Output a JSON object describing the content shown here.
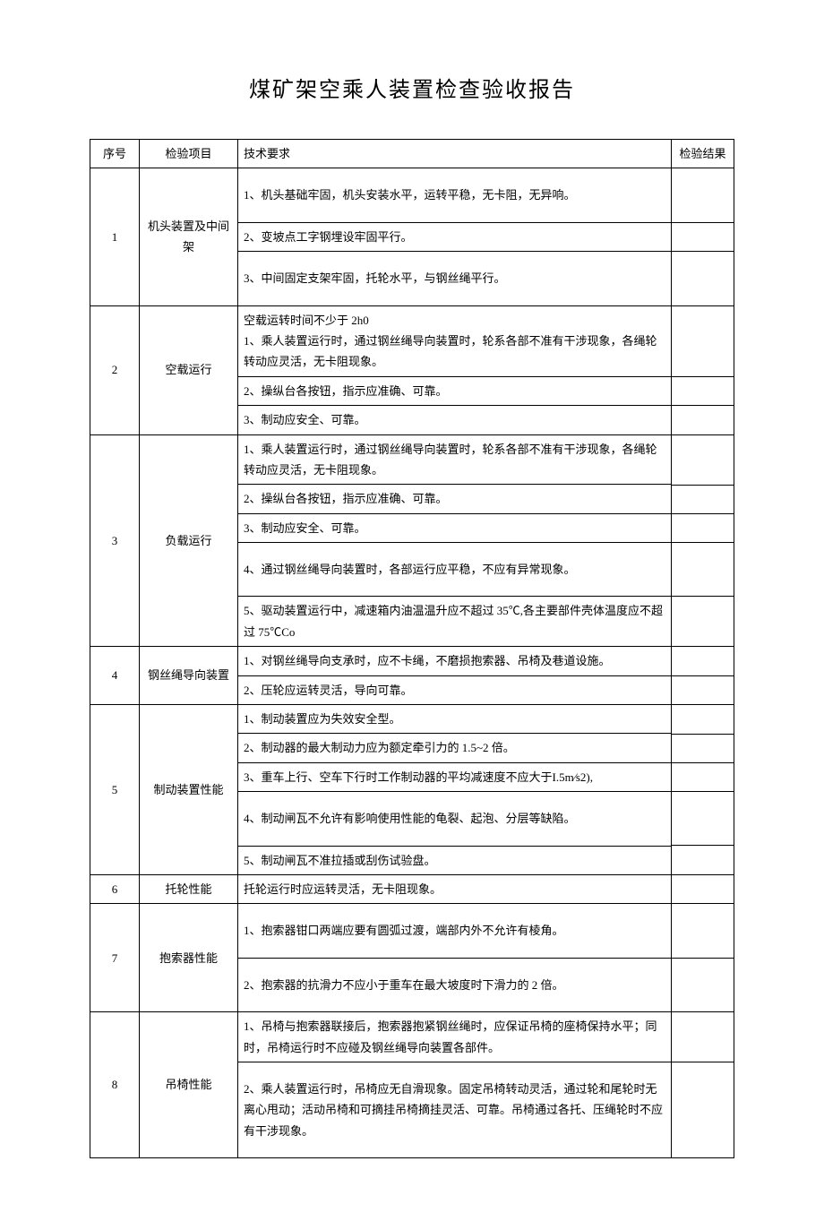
{
  "title": "煤矿架空乘人装置检查验收报告",
  "headers": {
    "seq": "序号",
    "item": "检验项目",
    "req": "技术要求",
    "result": "检验结果"
  },
  "rows": [
    {
      "seq": "1",
      "item": "机头装置及中间架",
      "reqs": [
        "1、机头基础牢固，机头安装水平，运转平稳，无卡阻，无异响。",
        "2、变坡点工字钢埋设牢固平行。",
        "3、中间固定支架牢固，托轮水平，与钢丝绳平行。"
      ],
      "tall": [
        true,
        false,
        true
      ]
    },
    {
      "seq": "2",
      "item": "空载运行",
      "reqs": [
        "空载运转时间不少于 2h0\n1、乘人装置运行时，通过钢丝绳导向装置时，轮系各部不准有干涉现象，各绳轮转动应灵活，无卡阻现象。",
        "2、操纵台各按钮，指示应准确、可靠。",
        "3、制动应安全、可靠。"
      ]
    },
    {
      "seq": "3",
      "item": "负载运行",
      "reqs": [
        "1、乘人装置运行时，通过钢丝绳导向装置时，轮系各部不准有干涉现象，各绳轮转动应灵活，无卡阻现象。",
        "2、操纵台各按钮，指示应准确、可靠。",
        "3、制动应安全、可靠。",
        "4、通过钢丝绳导向装置时，各部运行应平稳，不应有异常现象。",
        "5、驱动装置运行中，减速箱内油温温升应不超过 35℃,各主要部件壳体温度应不超过 75℃Co"
      ],
      "tall": [
        false,
        false,
        false,
        true,
        false
      ]
    },
    {
      "seq": "4",
      "item": "钢丝绳导向装置",
      "reqs": [
        "1、对钢丝绳导向支承时，应不卡绳，不磨损抱索器、吊椅及巷道设施。",
        "2、压轮应运转灵活，导向可靠。"
      ]
    },
    {
      "seq": "5",
      "item": "制动装置性能",
      "reqs": [
        "1、制动装置应为失效安全型。",
        "2、制动器的最大制动力应为额定牵引力的 1.5~2 倍。",
        "3、重车上行、空车下行时工作制动器的平均减速度不应大于I.5m⁄s2),",
        "4、制动闸瓦不允许有影响使用性能的龟裂、起泡、分层等缺陷。",
        "5、制动闸瓦不准拉插或刮伤试验盘。"
      ],
      "tall": [
        false,
        false,
        false,
        true,
        false
      ]
    },
    {
      "seq": "6",
      "item": "托轮性能",
      "reqs": [
        "托轮运行时应运转灵活，无卡阻现象。"
      ]
    },
    {
      "seq": "7",
      "item": "抱索器性能",
      "reqs": [
        "1、抱索器钳口两端应要有圆弧过渡，端部内外不允许有棱角。",
        "2、抱索器的抗滑力不应小于重车在最大坡度时下滑力的 2 倍。"
      ],
      "tall": [
        true,
        true
      ]
    },
    {
      "seq": "8",
      "item": "吊椅性能",
      "reqs": [
        "1、吊椅与抱索器联接后，抱索器抱紧钢丝绳时，应保证吊椅的座椅保持水平；同时，吊椅运行时不应碰及钢丝绳导向装置各部件。",
        "2、乘人装置运行时，吊椅应无自滑现象。固定吊椅转动灵活，通过轮和尾轮时无离心甩动；活动吊椅和可摘挂吊椅摘挂灵活、可靠。吊椅通过各托、压绳轮时不应有干涉现象。"
      ],
      "tall": [
        false,
        true
      ]
    }
  ]
}
